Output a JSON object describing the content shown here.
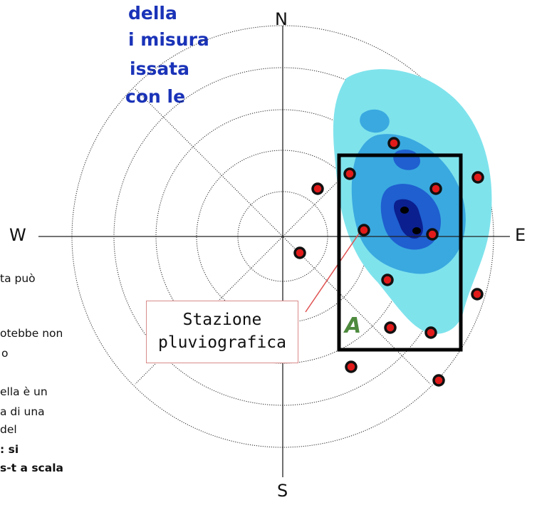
{
  "title_lines": [
    "della",
    "i misura",
    "issata",
    "con le"
  ],
  "body_lines": [
    {
      "text": "ta può",
      "bold": false
    },
    {
      "text": "otebbe non",
      "bold": false
    },
    {
      "text": "o",
      "bold": false
    },
    {
      "text": "ella è un",
      "bold": false
    },
    {
      "text": "a di una",
      "bold": false
    },
    {
      "text": "del",
      "bold": false
    },
    {
      "text": ": si",
      "bold": true
    },
    {
      "text": "s-t a scala",
      "bold": true
    }
  ],
  "compass": {
    "north": "N",
    "south": "S",
    "west": "W",
    "east": "E"
  },
  "station_label": {
    "line1": "Stazione",
    "line2": "pluviografica"
  },
  "region_label": "A",
  "colors": {
    "title": "#1a33b8",
    "isohyet_outer": "#7fe3ec",
    "isohyet_mid": "#3aa9e0",
    "isohyet_inner": "#1f5fd0",
    "isohyet_core": "#0b1f8f",
    "station_fill": "#e11a1a",
    "rectangle": "#000000",
    "pointer": "#e05050"
  }
}
